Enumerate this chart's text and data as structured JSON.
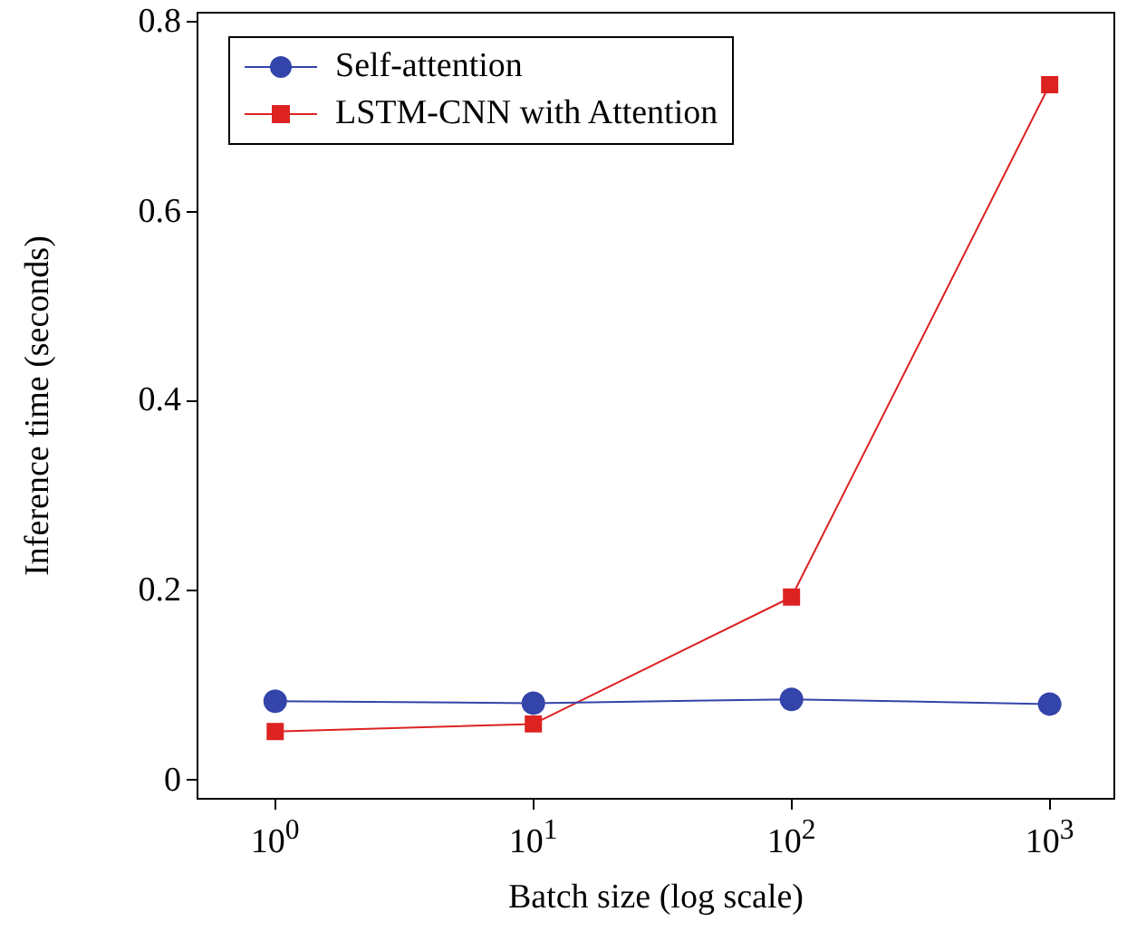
{
  "chart_data": {
    "type": "line",
    "xlabel": "Batch size (log scale)",
    "ylabel": "Inference time (seconds)",
    "x": [
      1,
      10,
      100,
      1000
    ],
    "series": [
      {
        "name": "Self-attention",
        "color": "#3344aa",
        "marker": "circle",
        "values": [
          0.083,
          0.081,
          0.085,
          0.08
        ]
      },
      {
        "name": "LSTM-CNN with Attention",
        "color": "#dd2222",
        "marker": "square",
        "values": [
          0.051,
          0.059,
          0.193,
          0.734
        ]
      }
    ],
    "log": "x",
    "xlim": [
      0.5,
      1780
    ],
    "xticks": [
      {
        "value": 1,
        "label": "10$^{0}$"
      },
      {
        "value": 10,
        "label": "10$^{1}$"
      },
      {
        "value": 100,
        "label": "10$^{2}$"
      },
      {
        "value": 1000,
        "label": "10$^{3}$"
      }
    ],
    "ylim": [
      -0.02,
      0.81
    ],
    "yticks": [
      0,
      0.2,
      0.4,
      0.6,
      0.8
    ],
    "grid": false,
    "legend": "top left"
  }
}
